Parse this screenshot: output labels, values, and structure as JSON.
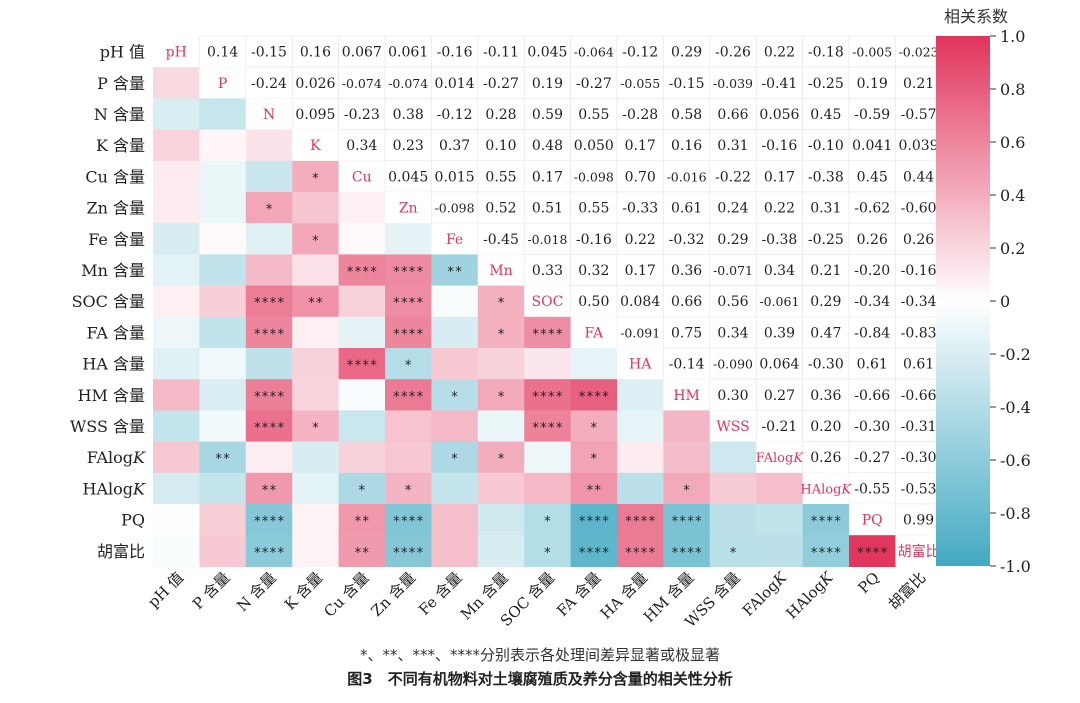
{
  "chart_data": {
    "type": "heatmap",
    "variables": [
      "pH 值",
      "P 含量",
      "N 含量",
      "K 含量",
      "Cu 含量",
      "Zn 含量",
      "Fe 含量",
      "Mn 含量",
      "SOC 含量",
      "FA 含量",
      "HA 含量",
      "HM 含量",
      "WSS 含量",
      "FAlogK",
      "HAlogK",
      "PQ",
      "胡富比"
    ],
    "diagonal_labels": [
      "pH",
      "P",
      "N",
      "K",
      "Cu",
      "Zn",
      "Fe",
      "Mn",
      "SOC",
      "FA",
      "HA",
      "HM",
      "WSS",
      "FAlogK",
      "HAlogK",
      "PQ",
      "胡富比"
    ],
    "upper_values": [
      [
        "",
        "0.14",
        "-0.15",
        "0.16",
        "0.067",
        "0.061",
        "-0.16",
        "-0.11",
        "0.045",
        "-0.064",
        "-0.12",
        "0.29",
        "-0.26",
        "0.22",
        "-0.18",
        "-0.005",
        "-0.023"
      ],
      [
        "",
        "",
        "-0.24",
        "0.026",
        "-0.074",
        "-0.074",
        "0.014",
        "-0.27",
        "0.19",
        "-0.27",
        "-0.055",
        "-0.15",
        "-0.039",
        "-0.41",
        "-0.25",
        "0.19",
        "0.21"
      ],
      [
        "",
        "",
        "",
        "0.095",
        "-0.23",
        "0.38",
        "-0.12",
        "0.28",
        "0.59",
        "0.55",
        "-0.28",
        "0.58",
        "0.66",
        "0.056",
        "0.45",
        "-0.59",
        "-0.57"
      ],
      [
        "",
        "",
        "",
        "",
        "0.34",
        "0.23",
        "0.37",
        "0.10",
        "0.48",
        "0.050",
        "0.17",
        "0.16",
        "0.31",
        "-0.16",
        "-0.10",
        "0.041",
        "0.039"
      ],
      [
        "",
        "",
        "",
        "",
        "",
        "0.045",
        "0.015",
        "0.55",
        "0.17",
        "-0.098",
        "0.70",
        "-0.016",
        "-0.22",
        "0.17",
        "-0.38",
        "0.45",
        "0.44"
      ],
      [
        "",
        "",
        "",
        "",
        "",
        "",
        "-0.098",
        "0.52",
        "0.51",
        "0.55",
        "-0.33",
        "0.61",
        "0.24",
        "0.22",
        "0.31",
        "-0.62",
        "-0.60"
      ],
      [
        "",
        "",
        "",
        "",
        "",
        "",
        "",
        "-0.45",
        "-0.018",
        "-0.16",
        "0.22",
        "-0.32",
        "0.29",
        "-0.38",
        "-0.25",
        "0.26",
        "0.26"
      ],
      [
        "",
        "",
        "",
        "",
        "",
        "",
        "",
        "",
        "0.33",
        "0.32",
        "0.17",
        "0.36",
        "-0.071",
        "0.34",
        "0.21",
        "-0.20",
        "-0.16"
      ],
      [
        "",
        "",
        "",
        "",
        "",
        "",
        "",
        "",
        "",
        "0.50",
        "0.084",
        "0.66",
        "0.56",
        "-0.061",
        "0.29",
        "-0.34",
        "-0.34"
      ],
      [
        "",
        "",
        "",
        "",
        "",
        "",
        "",
        "",
        "",
        "",
        "-0.091",
        "0.75",
        "0.34",
        "0.39",
        "0.47",
        "-0.84",
        "-0.83"
      ],
      [
        "",
        "",
        "",
        "",
        "",
        "",
        "",
        "",
        "",
        "",
        "",
        "-0.14",
        "-0.090",
        "0.064",
        "-0.30",
        "0.61",
        "0.61"
      ],
      [
        "",
        "",
        "",
        "",
        "",
        "",
        "",
        "",
        "",
        "",
        "",
        "",
        "0.30",
        "0.27",
        "0.36",
        "-0.66",
        "-0.66"
      ],
      [
        "",
        "",
        "",
        "",
        "",
        "",
        "",
        "",
        "",
        "",
        "",
        "",
        "",
        "-0.21",
        "0.20",
        "-0.30",
        "-0.31"
      ],
      [
        "",
        "",
        "",
        "",
        "",
        "",
        "",
        "",
        "",
        "",
        "",
        "",
        "",
        "",
        "0.26",
        "-0.27",
        "-0.30"
      ],
      [
        "",
        "",
        "",
        "",
        "",
        "",
        "",
        "",
        "",
        "",
        "",
        "",
        "",
        "",
        "",
        "-0.55",
        "-0.53"
      ],
      [
        "",
        "",
        "",
        "",
        "",
        "",
        "",
        "",
        "",
        "",
        "",
        "",
        "",
        "",
        "",
        "",
        "0.99"
      ],
      [
        "",
        "",
        "",
        "",
        "",
        "",
        "",
        "",
        "",
        "",
        "",
        "",
        "",
        "",
        "",
        "",
        ""
      ]
    ],
    "lower_significance": [
      [
        "",
        "",
        "",
        "",
        "",
        "",
        "",
        "",
        "",
        "",
        "",
        "",
        "",
        "",
        "",
        "",
        ""
      ],
      [
        "",
        "",
        "",
        "",
        "",
        "",
        "",
        "",
        "",
        "",
        "",
        "",
        "",
        "",
        "",
        "",
        ""
      ],
      [
        "",
        "",
        "",
        "",
        "",
        "",
        "",
        "",
        "",
        "",
        "",
        "",
        "",
        "",
        "",
        "",
        ""
      ],
      [
        "",
        "",
        "",
        "",
        "",
        "",
        "",
        "",
        "",
        "",
        "",
        "",
        "",
        "",
        "",
        "",
        ""
      ],
      [
        "",
        "",
        "",
        "*",
        "",
        "",
        "",
        "",
        "",
        "",
        "",
        "",
        "",
        "",
        "",
        "",
        ""
      ],
      [
        "",
        "",
        "*",
        "",
        "",
        "",
        "",
        "",
        "",
        "",
        "",
        "",
        "",
        "",
        "",
        "",
        ""
      ],
      [
        "",
        "",
        "",
        "*",
        "",
        "",
        "",
        "",
        "",
        "",
        "",
        "",
        "",
        "",
        "",
        "",
        ""
      ],
      [
        "",
        "",
        "",
        "",
        "****",
        "****",
        "**",
        "",
        "",
        "",
        "",
        "",
        "",
        "",
        "",
        "",
        ""
      ],
      [
        "",
        "",
        "****",
        "**",
        "",
        "****",
        "",
        "*",
        "",
        "",
        "",
        "",
        "",
        "",
        "",
        "",
        ""
      ],
      [
        "",
        "",
        "****",
        "",
        "",
        "****",
        "",
        "*",
        "****",
        "",
        "",
        "",
        "",
        "",
        "",
        "",
        ""
      ],
      [
        "",
        "",
        "",
        "",
        "****",
        "*",
        "",
        "",
        "",
        "",
        "",
        "",
        "",
        "",
        "",
        "",
        ""
      ],
      [
        "",
        "",
        "****",
        "",
        "",
        "****",
        "*",
        "*",
        "****",
        "****",
        "",
        "",
        "",
        "",
        "",
        "",
        ""
      ],
      [
        "",
        "",
        "****",
        "*",
        "",
        "",
        "",
        "",
        "****",
        "*",
        "",
        "",
        "",
        "",
        "",
        "",
        ""
      ],
      [
        "",
        "**",
        "",
        "",
        "",
        "",
        "*",
        "*",
        "",
        "*",
        "",
        "",
        "",
        "",
        "",
        "",
        ""
      ],
      [
        "",
        "",
        "**",
        "",
        "*",
        "*",
        "",
        "",
        "",
        "**",
        "",
        "*",
        "",
        "",
        "",
        "",
        ""
      ],
      [
        "",
        "",
        "****",
        "",
        "**",
        "****",
        "",
        "",
        "*",
        "****",
        "****",
        "****",
        "",
        "",
        "****",
        "",
        ""
      ],
      [
        "",
        "",
        "****",
        "",
        "**",
        "****",
        "",
        "",
        "*",
        "****",
        "****",
        "****",
        "*",
        "",
        "****",
        "****",
        ""
      ]
    ],
    "colorbar": {
      "title": "相关系数",
      "range": [
        -1.0,
        1.0
      ],
      "ticks": [
        "1.0",
        "0.8",
        "0.6",
        "0.4",
        "0.2",
        "0",
        "-0.2",
        "-0.4",
        "-0.6",
        "-0.8",
        "-1.0"
      ],
      "colors": {
        "positive": "#e1345c",
        "neutral": "#ffffff",
        "negative": "#42a9c2"
      }
    }
  },
  "footnote": "*、**、***、****分别表示各处理间差异显著或极显著",
  "caption": "图3　不同有机物料对土壤腐殖质及养分含量的相关性分析"
}
